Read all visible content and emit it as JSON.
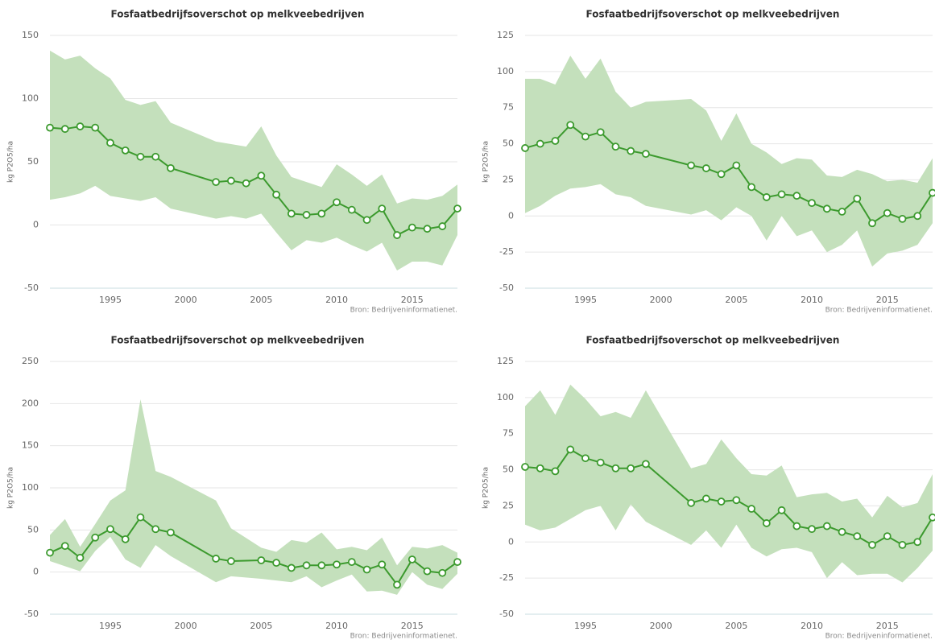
{
  "chart_data": [
    {
      "type": "line",
      "title": "Fosfaatbedrijfsoverschot op melkveebedrijven",
      "y_label": "kg P2O5/ha",
      "source": "Bron: Bedrijveninformatienet.",
      "color": "#3c9a2e",
      "band_color": "#c4e0bc",
      "x": [
        1991,
        1992,
        1993,
        1994,
        1995,
        1996,
        1997,
        1998,
        1999,
        2002,
        2003,
        2004,
        2005,
        2006,
        2007,
        2008,
        2009,
        2010,
        2011,
        2012,
        2013,
        2014,
        2015,
        2016,
        2017,
        2018
      ],
      "values": [
        77,
        76,
        78,
        77,
        65,
        59,
        54,
        54,
        45,
        34,
        35,
        33,
        39,
        24,
        9,
        8,
        9,
        18,
        12,
        4,
        13,
        -8,
        -2,
        -3,
        -1,
        13
      ],
      "upper": [
        138,
        131,
        134,
        124,
        116,
        99,
        95,
        98,
        81,
        66,
        64,
        62,
        78,
        55,
        38,
        34,
        30,
        48,
        40,
        31,
        40,
        17,
        21,
        20,
        23,
        32
      ],
      "lower": [
        20,
        22,
        25,
        31,
        23,
        21,
        19,
        22,
        13,
        5,
        7,
        5,
        9,
        -6,
        -20,
        -12,
        -14,
        -10,
        -16,
        -21,
        -14,
        -36,
        -29,
        -29,
        -32,
        -8
      ],
      "xlim": [
        1991,
        2018
      ],
      "xticks": [
        1995,
        2000,
        2005,
        2010,
        2015
      ],
      "ylim": [
        -50,
        150
      ],
      "yticks": [
        -50,
        0,
        50,
        100,
        150
      ],
      "grid": true
    },
    {
      "type": "line",
      "title": "Fosfaatbedrijfsoverschot op melkveebedrijven",
      "y_label": "kg P2O5/ha",
      "source": "Bron: Bedrijveninformatienet.",
      "color": "#3c9a2e",
      "band_color": "#c4e0bc",
      "x": [
        1991,
        1992,
        1993,
        1994,
        1995,
        1996,
        1997,
        1998,
        1999,
        2002,
        2003,
        2004,
        2005,
        2006,
        2007,
        2008,
        2009,
        2010,
        2011,
        2012,
        2013,
        2014,
        2015,
        2016,
        2017,
        2018
      ],
      "values": [
        47,
        50,
        52,
        63,
        55,
        58,
        48,
        45,
        43,
        35,
        33,
        29,
        35,
        20,
        13,
        15,
        14,
        9,
        5,
        3,
        12,
        -5,
        2,
        -2,
        0,
        16
      ],
      "upper": [
        95,
        95,
        91,
        111,
        95,
        109,
        86,
        75,
        79,
        81,
        73,
        52,
        71,
        50,
        44,
        36,
        40,
        39,
        28,
        27,
        32,
        29,
        24,
        25,
        23,
        40
      ],
      "lower": [
        2,
        7,
        14,
        19,
        20,
        22,
        15,
        13,
        7,
        1,
        4,
        -3,
        6,
        0,
        -17,
        0,
        -14,
        -10,
        -25,
        -20,
        -10,
        -35,
        -26,
        -24,
        -20,
        -5
      ],
      "xlim": [
        1991,
        2018
      ],
      "xticks": [
        1995,
        2000,
        2005,
        2010,
        2015
      ],
      "ylim": [
        -50,
        125
      ],
      "yticks": [
        -50,
        -25,
        0,
        25,
        50,
        75,
        100,
        125
      ],
      "grid": true
    },
    {
      "type": "line",
      "title": "Fosfaatbedrijfsoverschot op melkveebedrijven",
      "y_label": "kg P2O5/ha",
      "source": "Bron: Bedrijveninformatienet.",
      "color": "#3c9a2e",
      "band_color": "#c4e0bc",
      "x": [
        1991,
        1992,
        1993,
        1994,
        1995,
        1996,
        1997,
        1998,
        1999,
        2002,
        2003,
        2005,
        2006,
        2007,
        2008,
        2009,
        2010,
        2011,
        2012,
        2013,
        2014,
        2015,
        2016,
        2017,
        2018
      ],
      "values": [
        23,
        31,
        17,
        41,
        51,
        39,
        65,
        51,
        47,
        16,
        13,
        14,
        11,
        5,
        8,
        8,
        9,
        12,
        3,
        9,
        -15,
        15,
        1,
        -1,
        12
      ],
      "upper": [
        44,
        63,
        30,
        57,
        85,
        97,
        205,
        120,
        113,
        85,
        52,
        29,
        24,
        38,
        35,
        47,
        27,
        30,
        26,
        41,
        8,
        30,
        28,
        32,
        23
      ],
      "lower": [
        13,
        7,
        1,
        25,
        42,
        15,
        5,
        32,
        19,
        -12,
        -5,
        -8,
        -10,
        -12,
        -5,
        -18,
        -10,
        -3,
        -23,
        -22,
        -27,
        0,
        -15,
        -20,
        -2
      ],
      "xlim": [
        1991,
        2018
      ],
      "xticks": [
        1995,
        2000,
        2005,
        2010,
        2015
      ],
      "ylim": [
        -50,
        250
      ],
      "yticks": [
        -50,
        0,
        50,
        100,
        150,
        200,
        250
      ],
      "grid": true
    },
    {
      "type": "line",
      "title": "Fosfaatbedrijfsoverschot op melkveebedrijven",
      "y_label": "kg P2O5/ha",
      "source": "Bron: Bedrijveninformatienet.",
      "color": "#3c9a2e",
      "band_color": "#c4e0bc",
      "x": [
        1991,
        1992,
        1993,
        1994,
        1995,
        1996,
        1997,
        1998,
        1999,
        2002,
        2003,
        2004,
        2005,
        2006,
        2007,
        2008,
        2009,
        2010,
        2011,
        2012,
        2013,
        2014,
        2015,
        2016,
        2017,
        2018
      ],
      "values": [
        52,
        51,
        49,
        64,
        58,
        55,
        51,
        51,
        54,
        27,
        30,
        28,
        29,
        23,
        13,
        22,
        11,
        9,
        11,
        7,
        4,
        -2,
        4,
        -2,
        0,
        17
      ],
      "upper": [
        94,
        105,
        88,
        109,
        99,
        87,
        90,
        86,
        105,
        51,
        54,
        71,
        58,
        47,
        46,
        53,
        31,
        33,
        34,
        28,
        30,
        17,
        32,
        24,
        27,
        47
      ],
      "lower": [
        12,
        8,
        10,
        16,
        22,
        25,
        8,
        26,
        14,
        -2,
        8,
        -4,
        12,
        -4,
        -10,
        -5,
        -4,
        -7,
        -25,
        -14,
        -23,
        -22,
        -22,
        -28,
        -18,
        -6
      ],
      "xlim": [
        1991,
        2018
      ],
      "xticks": [
        1995,
        2000,
        2005,
        2010,
        2015
      ],
      "ylim": [
        -50,
        125
      ],
      "yticks": [
        -50,
        -25,
        0,
        25,
        50,
        75,
        100,
        125
      ],
      "grid": true
    }
  ]
}
